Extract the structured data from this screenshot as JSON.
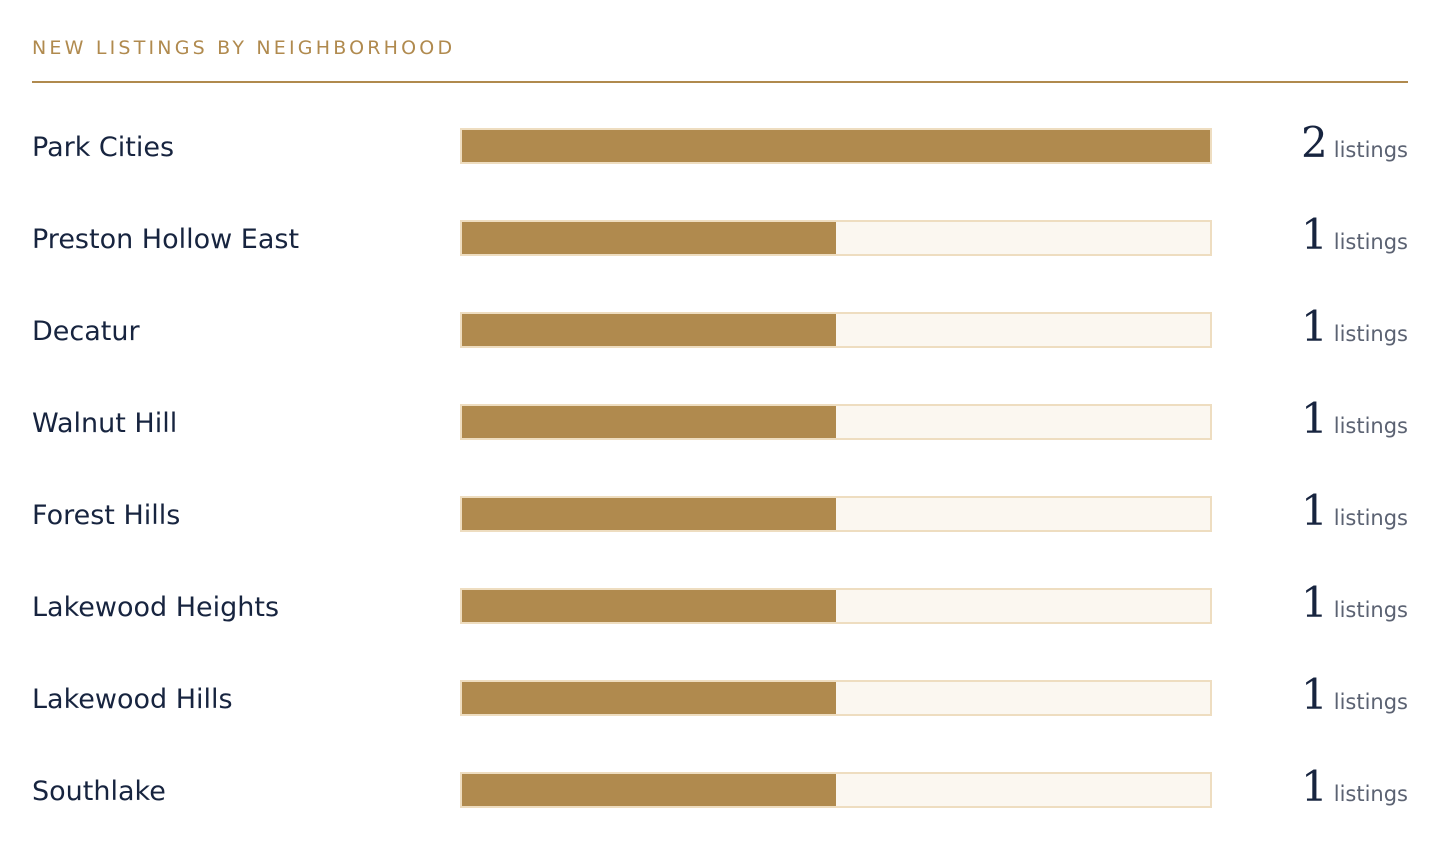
{
  "colors": {
    "accent": "#b08a4e",
    "text": "#17243f",
    "track": "#fbf7f0",
    "track_border": "#eeddc0"
  },
  "chart_data": {
    "type": "bar",
    "orientation": "horizontal",
    "title": "NEW LISTINGS BY NEIGHBORHOOD",
    "unit": "listings",
    "xlim": [
      0,
      2
    ],
    "grid": false,
    "categories": [
      "Park Cities",
      "Preston Hollow East",
      "Decatur",
      "Walnut Hill",
      "Forest Hills",
      "Lakewood Heights",
      "Lakewood Hills",
      "Southlake"
    ],
    "values": [
      2,
      1,
      1,
      1,
      1,
      1,
      1,
      1
    ]
  }
}
